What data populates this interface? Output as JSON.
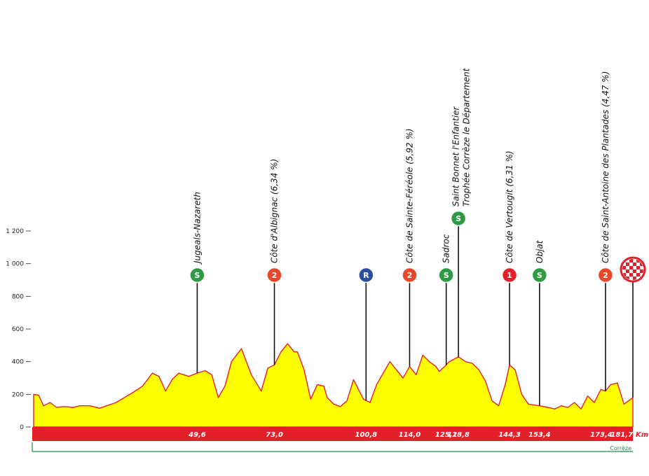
{
  "colors": {
    "profile_fill": "#ffff00",
    "profile_line": "#e3202a",
    "km_band": "#e3202a",
    "sprint": "#2e9a44",
    "cat1": "#e3202a",
    "cat2": "#e8472a",
    "feed": "#2b4ea2",
    "region_line": "#1f8a4a"
  },
  "chart_data": {
    "type": "area",
    "title": "",
    "xlabel": "",
    "ylabel": "",
    "x_unit": "Km",
    "xlim": [
      0,
      181.7
    ],
    "ylim": [
      0,
      1300
    ],
    "y_ticks": [
      {
        "value": 0,
        "label": "0"
      },
      {
        "value": 200,
        "label": "200"
      },
      {
        "value": 400,
        "label": "400"
      },
      {
        "value": 600,
        "label": "600"
      },
      {
        "value": 800,
        "label": "800"
      },
      {
        "value": 1000,
        "label": "1 000"
      },
      {
        "value": 1200,
        "label": "1 200"
      }
    ],
    "x": [
      0,
      1.5,
      3,
      5,
      7,
      9,
      12,
      14,
      17,
      20,
      25,
      30,
      33,
      36,
      38,
      40,
      42,
      44,
      47,
      49.6,
      52,
      54,
      56,
      58,
      60,
      63,
      66,
      69,
      71,
      73,
      75,
      77,
      79,
      80,
      82,
      84,
      86,
      88,
      89,
      91,
      93,
      95,
      97,
      100,
      102,
      104,
      106,
      108,
      110,
      112,
      114,
      116,
      118,
      120,
      122,
      123,
      125.1,
      126,
      128.8,
      131,
      133,
      135,
      137,
      139,
      141,
      143,
      144.3,
      146,
      148,
      150,
      153.4,
      156,
      158,
      160,
      162,
      164,
      166,
      168,
      170,
      172,
      173.4,
      175,
      177,
      179,
      181.7
    ],
    "y": [
      200,
      195,
      130,
      150,
      120,
      125,
      120,
      130,
      130,
      115,
      150,
      210,
      250,
      330,
      310,
      220,
      290,
      330,
      310,
      330,
      345,
      320,
      180,
      250,
      400,
      480,
      320,
      220,
      360,
      380,
      460,
      510,
      460,
      460,
      350,
      170,
      260,
      250,
      180,
      140,
      125,
      160,
      290,
      170,
      150,
      260,
      330,
      400,
      350,
      300,
      370,
      320,
      440,
      400,
      370,
      340,
      380,
      400,
      430,
      400,
      390,
      350,
      280,
      160,
      130,
      260,
      380,
      350,
      200,
      140,
      130,
      120,
      110,
      130,
      120,
      150,
      110,
      190,
      150,
      230,
      220,
      260,
      270,
      140,
      180
    ],
    "km_markers": [
      "49,6",
      "73,0",
      "100,8",
      "114,0",
      "125,1",
      "128,8",
      "144,3",
      "153,4",
      "173,4",
      "181,7"
    ],
    "region_label": "Corrèze",
    "points": [
      {
        "km": 49.6,
        "badge": "S",
        "kind": "sprint",
        "label_lines": [
          "Jugeals-Nazareth"
        ]
      },
      {
        "km": 73.0,
        "badge": "2",
        "kind": "cat2",
        "label_lines": [
          "Côte d'Albignac (6,34 %)"
        ]
      },
      {
        "km": 100.8,
        "badge": "R",
        "kind": "feed",
        "label_lines": []
      },
      {
        "km": 114.0,
        "badge": "2",
        "kind": "cat2",
        "label_lines": [
          "Côte de Sainte-Féréole (5,92 %)"
        ]
      },
      {
        "km": 125.1,
        "badge": "S",
        "kind": "sprint",
        "label_lines": [
          "Sadroc"
        ]
      },
      {
        "km": 128.8,
        "badge": "S",
        "kind": "sprint",
        "label_lines": [
          "Saint Bonnet l'Enfantier",
          "Trophée Corrèze le Département"
        ]
      },
      {
        "km": 144.3,
        "badge": "1",
        "kind": "cat1",
        "label_lines": [
          "Côte de Vertougit (6,31 %)"
        ]
      },
      {
        "km": 153.4,
        "badge": "S",
        "kind": "sprint",
        "label_lines": [
          "Objat"
        ]
      },
      {
        "km": 173.4,
        "badge": "2",
        "kind": "cat2",
        "label_lines": [
          "Côte de Saint-Antoine des Plantades (4,47 %)"
        ]
      },
      {
        "km": 181.7,
        "badge": "",
        "kind": "finish",
        "label_lines": []
      }
    ]
  }
}
